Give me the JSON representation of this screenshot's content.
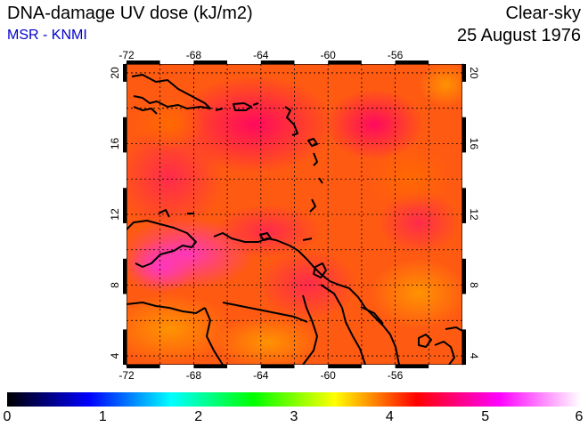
{
  "header": {
    "title": "DNA-damage UV dose (kJ/m2)",
    "source": "MSR - KNMI",
    "sky_condition": "Clear-sky",
    "date": "25 August 1976"
  },
  "map": {
    "longitude_ticks": [
      "-72",
      "-68",
      "-64",
      "-60",
      "-56"
    ],
    "latitude_ticks": [
      "4",
      "8",
      "12",
      "16",
      "20"
    ],
    "lon_range": [
      -72,
      -52
    ],
    "lat_range": [
      3.5,
      20.5
    ]
  },
  "colorbar": {
    "ticks": [
      "0",
      "1",
      "2",
      "3",
      "4",
      "5",
      "6"
    ],
    "range": [
      0,
      6
    ],
    "colors": [
      "#000000",
      "#0000ff",
      "#00ffff",
      "#00ff00",
      "#ffff00",
      "#ff0000",
      "#ff00ff",
      "#ffffff"
    ]
  }
}
